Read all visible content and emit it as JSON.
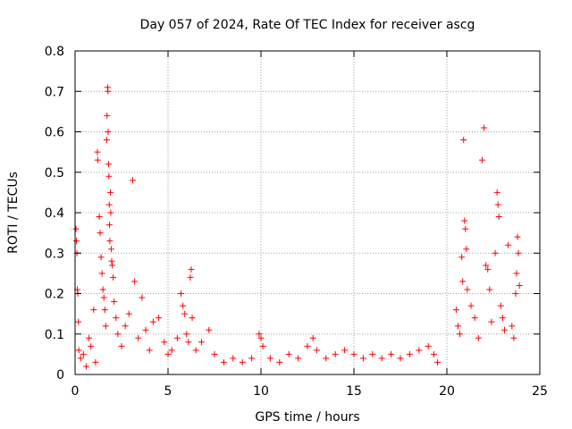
{
  "chart_data": {
    "type": "scatter",
    "title": "Day 057 of 2024, Rate Of TEC Index for receiver ascg",
    "xlabel": "GPS time / hours",
    "ylabel": "ROTI / TECUs",
    "xlim": [
      0,
      25
    ],
    "ylim": [
      0,
      0.8
    ],
    "xticks": [
      0,
      5,
      10,
      15,
      20,
      25
    ],
    "yticks": [
      0,
      0.1,
      0.2,
      0.3,
      0.4,
      0.5,
      0.6,
      0.7,
      0.8
    ],
    "xtick_labels": [
      "0",
      "5",
      "10",
      "15",
      "20",
      "25"
    ],
    "ytick_labels": [
      "0",
      "0.1",
      "0.2",
      "0.3",
      "0.4",
      "0.5",
      "0.6",
      "0.7",
      "0.8"
    ],
    "grid": true,
    "marker": "+",
    "colors": {
      "points": "#ff0000",
      "grid": "#a0a0a0",
      "axes": "#000000"
    },
    "series": [
      {
        "values": [
          [
            0.05,
            0.36
          ],
          [
            0.07,
            0.33
          ],
          [
            0.1,
            0.3
          ],
          [
            0.12,
            0.21
          ],
          [
            0.15,
            0.2
          ],
          [
            0.18,
            0.13
          ],
          [
            0.2,
            0.06
          ],
          [
            0.3,
            0.04
          ],
          [
            0.45,
            0.05
          ],
          [
            0.6,
            0.02
          ],
          [
            0.75,
            0.09
          ],
          [
            0.85,
            0.07
          ],
          [
            1.0,
            0.16
          ],
          [
            1.1,
            0.03
          ],
          [
            1.2,
            0.55
          ],
          [
            1.22,
            0.53
          ],
          [
            1.3,
            0.39
          ],
          [
            1.35,
            0.35
          ],
          [
            1.4,
            0.29
          ],
          [
            1.45,
            0.25
          ],
          [
            1.5,
            0.21
          ],
          [
            1.55,
            0.19
          ],
          [
            1.6,
            0.16
          ],
          [
            1.65,
            0.12
          ],
          [
            1.7,
            0.58
          ],
          [
            1.72,
            0.64
          ],
          [
            1.75,
            0.71
          ],
          [
            1.77,
            0.7
          ],
          [
            1.78,
            0.6
          ],
          [
            1.8,
            0.52
          ],
          [
            1.82,
            0.49
          ],
          [
            1.84,
            0.42
          ],
          [
            1.85,
            0.37
          ],
          [
            1.87,
            0.33
          ],
          [
            1.9,
            0.45
          ],
          [
            1.92,
            0.4
          ],
          [
            1.95,
            0.31
          ],
          [
            1.97,
            0.28
          ],
          [
            2.0,
            0.27
          ],
          [
            2.05,
            0.24
          ],
          [
            2.1,
            0.18
          ],
          [
            2.2,
            0.14
          ],
          [
            2.3,
            0.1
          ],
          [
            2.5,
            0.07
          ],
          [
            2.7,
            0.12
          ],
          [
            2.9,
            0.15
          ],
          [
            3.1,
            0.48
          ],
          [
            3.2,
            0.23
          ],
          [
            3.4,
            0.09
          ],
          [
            3.6,
            0.19
          ],
          [
            3.8,
            0.11
          ],
          [
            4.0,
            0.06
          ],
          [
            4.2,
            0.13
          ],
          [
            4.5,
            0.14
          ],
          [
            4.8,
            0.08
          ],
          [
            5.0,
            0.05
          ],
          [
            5.2,
            0.06
          ],
          [
            5.5,
            0.09
          ],
          [
            5.7,
            0.2
          ],
          [
            5.8,
            0.17
          ],
          [
            5.9,
            0.15
          ],
          [
            6.0,
            0.1
          ],
          [
            6.1,
            0.08
          ],
          [
            6.2,
            0.24
          ],
          [
            6.25,
            0.26
          ],
          [
            6.3,
            0.14
          ],
          [
            6.5,
            0.06
          ],
          [
            6.8,
            0.08
          ],
          [
            7.2,
            0.11
          ],
          [
            7.5,
            0.05
          ],
          [
            8.0,
            0.03
          ],
          [
            8.5,
            0.04
          ],
          [
            9.0,
            0.03
          ],
          [
            9.5,
            0.04
          ],
          [
            9.9,
            0.1
          ],
          [
            10.0,
            0.09
          ],
          [
            10.1,
            0.07
          ],
          [
            10.5,
            0.04
          ],
          [
            11.0,
            0.03
          ],
          [
            11.5,
            0.05
          ],
          [
            12.0,
            0.04
          ],
          [
            12.5,
            0.07
          ],
          [
            12.8,
            0.09
          ],
          [
            13.0,
            0.06
          ],
          [
            13.5,
            0.04
          ],
          [
            14.0,
            0.05
          ],
          [
            14.5,
            0.06
          ],
          [
            15.0,
            0.05
          ],
          [
            15.5,
            0.04
          ],
          [
            16.0,
            0.05
          ],
          [
            16.5,
            0.04
          ],
          [
            17.0,
            0.05
          ],
          [
            17.5,
            0.04
          ],
          [
            18.0,
            0.05
          ],
          [
            18.5,
            0.06
          ],
          [
            19.0,
            0.07
          ],
          [
            19.3,
            0.05
          ],
          [
            19.5,
            0.03
          ],
          [
            20.5,
            0.16
          ],
          [
            20.6,
            0.12
          ],
          [
            20.7,
            0.1
          ],
          [
            20.8,
            0.29
          ],
          [
            20.85,
            0.23
          ],
          [
            20.9,
            0.58
          ],
          [
            20.95,
            0.38
          ],
          [
            21.0,
            0.36
          ],
          [
            21.05,
            0.31
          ],
          [
            21.1,
            0.21
          ],
          [
            21.3,
            0.17
          ],
          [
            21.5,
            0.14
          ],
          [
            21.7,
            0.09
          ],
          [
            21.9,
            0.53
          ],
          [
            22.0,
            0.61
          ],
          [
            22.1,
            0.27
          ],
          [
            22.2,
            0.26
          ],
          [
            22.3,
            0.21
          ],
          [
            22.4,
            0.13
          ],
          [
            22.6,
            0.3
          ],
          [
            22.7,
            0.45
          ],
          [
            22.75,
            0.42
          ],
          [
            22.8,
            0.39
          ],
          [
            22.9,
            0.17
          ],
          [
            23.0,
            0.14
          ],
          [
            23.1,
            0.11
          ],
          [
            23.3,
            0.32
          ],
          [
            23.5,
            0.12
          ],
          [
            23.6,
            0.09
          ],
          [
            23.7,
            0.2
          ],
          [
            23.75,
            0.25
          ],
          [
            23.8,
            0.34
          ],
          [
            23.85,
            0.3
          ],
          [
            23.9,
            0.22
          ]
        ]
      }
    ]
  }
}
